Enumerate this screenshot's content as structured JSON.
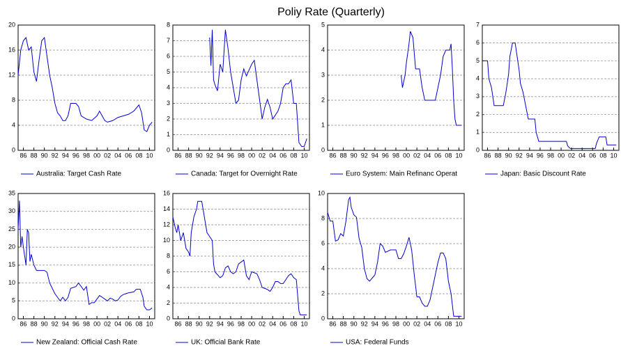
{
  "title": "Poliy Rate (Quarterly)",
  "chart_data": [
    {
      "type": "line",
      "grid": true,
      "xlim": [
        1985,
        2011
      ],
      "ylim": [
        0,
        20
      ],
      "yticks": [
        0,
        4,
        8,
        12,
        16,
        20
      ],
      "xticks": [
        {
          "value": 1986,
          "label": "86"
        },
        {
          "value": 1988,
          "label": "88"
        },
        {
          "value": 1990,
          "label": "90"
        },
        {
          "value": 1992,
          "label": "92"
        },
        {
          "value": 1994,
          "label": "94"
        },
        {
          "value": 1996,
          "label": "96"
        },
        {
          "value": 1998,
          "label": "98"
        },
        {
          "value": 2000,
          "label": "00"
        },
        {
          "value": 2002,
          "label": "02"
        },
        {
          "value": 2004,
          "label": "04"
        },
        {
          "value": 2006,
          "label": "06"
        },
        {
          "value": 2008,
          "label": "08"
        },
        {
          "value": 2010,
          "label": "10"
        }
      ],
      "x": [
        1985,
        1985.5,
        1986,
        1986.5,
        1987,
        1987.5,
        1988,
        1988.5,
        1989,
        1989.5,
        1990,
        1990.5,
        1991,
        1991.5,
        1992,
        1992.5,
        1993,
        1993.5,
        1994,
        1994.5,
        1995,
        1996,
        1996.5,
        1997,
        1998,
        1999,
        2000,
        2000.5,
        2001,
        2001.5,
        2002,
        2003,
        2004,
        2005,
        2006,
        2007,
        2008,
        2008.5,
        2009,
        2009.5,
        2010,
        2010.5
      ],
      "series": [
        {
          "name": "Australia: Target Cash Rate",
          "color": "#0000cc",
          "values": [
            12,
            16,
            17.5,
            18,
            16,
            16.5,
            12.5,
            11,
            14.5,
            17.5,
            18,
            15,
            12,
            10,
            7.5,
            6,
            5.5,
            4.75,
            4.75,
            5.5,
            7.5,
            7.5,
            7,
            5.5,
            5,
            4.75,
            5.5,
            6.25,
            5.5,
            4.75,
            4.5,
            4.75,
            5.25,
            5.5,
            5.75,
            6.25,
            7.25,
            6,
            3.25,
            3,
            4,
            4.5
          ]
        }
      ]
    },
    {
      "type": "line",
      "grid": true,
      "xlim": [
        1985,
        2011
      ],
      "ylim": [
        0,
        8
      ],
      "yticks": [
        0,
        1,
        2,
        3,
        4,
        5,
        6,
        7,
        8
      ],
      "xticks": [
        {
          "value": 1986,
          "label": "86"
        },
        {
          "value": 1988,
          "label": "88"
        },
        {
          "value": 1990,
          "label": "90"
        },
        {
          "value": 1992,
          "label": "92"
        },
        {
          "value": 1994,
          "label": "94"
        },
        {
          "value": 1996,
          "label": "96"
        },
        {
          "value": 1998,
          "label": "98"
        },
        {
          "value": 2000,
          "label": "00"
        },
        {
          "value": 2002,
          "label": "02"
        },
        {
          "value": 2004,
          "label": "04"
        },
        {
          "value": 2006,
          "label": "06"
        },
        {
          "value": 2008,
          "label": "08"
        },
        {
          "value": 2010,
          "label": "10"
        }
      ],
      "x": [
        1992,
        1992.25,
        1992.5,
        1992.75,
        1993,
        1993.5,
        1994,
        1994.5,
        1995,
        1995.5,
        1996,
        1996.5,
        1997,
        1997.5,
        1998,
        1998.5,
        1999,
        2000,
        2000.5,
        2001,
        2002,
        2002.5,
        2003,
        2003.5,
        2004,
        2005,
        2005.5,
        2006,
        2006.5,
        2007,
        2007.5,
        2008,
        2008.5,
        2009,
        2009.5,
        2010,
        2010.5
      ],
      "series": [
        {
          "name": "Canada: Target for Overnight Rate",
          "color": "#0000cc",
          "values": [
            7.2,
            5.4,
            7.7,
            4.5,
            4.2,
            3.8,
            5.5,
            5,
            7.7,
            6.5,
            5,
            4,
            3,
            3.2,
            4.5,
            5.2,
            4.75,
            5.5,
            5.75,
            4.5,
            2,
            2.75,
            3.25,
            2.75,
            2,
            2.5,
            3,
            4,
            4.25,
            4.25,
            4.5,
            3,
            3,
            0.5,
            0.25,
            0.25,
            0.75
          ]
        }
      ]
    },
    {
      "type": "line",
      "grid": true,
      "xlim": [
        1985,
        2011
      ],
      "ylim": [
        0,
        5
      ],
      "yticks": [
        0,
        1,
        2,
        3,
        4,
        5
      ],
      "xticks": [
        {
          "value": 1986,
          "label": "86"
        },
        {
          "value": 1988,
          "label": "88"
        },
        {
          "value": 1990,
          "label": "90"
        },
        {
          "value": 1992,
          "label": "92"
        },
        {
          "value": 1994,
          "label": "94"
        },
        {
          "value": 1996,
          "label": "96"
        },
        {
          "value": 1998,
          "label": "98"
        },
        {
          "value": 2000,
          "label": "00"
        },
        {
          "value": 2002,
          "label": "02"
        },
        {
          "value": 2004,
          "label": "04"
        },
        {
          "value": 2006,
          "label": "06"
        },
        {
          "value": 2008,
          "label": "08"
        },
        {
          "value": 2010,
          "label": "10"
        }
      ],
      "x": [
        1999,
        1999.25,
        1999.75,
        2000,
        2000.5,
        2000.75,
        2001.25,
        2001.75,
        2002.5,
        2003,
        2003.5,
        2005.5,
        2006,
        2006.5,
        2007,
        2007.5,
        2008.25,
        2008.5,
        2008.75,
        2009,
        2009.25,
        2009.5,
        2010.5
      ],
      "series": [
        {
          "name": "Euro System: Main Refinanc Operat",
          "color": "#0000cc",
          "values": [
            3,
            2.5,
            3,
            3.5,
            4.25,
            4.75,
            4.5,
            3.25,
            3.25,
            2.5,
            2,
            2,
            2.5,
            3,
            3.75,
            4,
            4,
            4.25,
            3.25,
            2,
            1.25,
            1,
            1
          ]
        }
      ]
    },
    {
      "type": "line",
      "grid": true,
      "xlim": [
        1985,
        2011
      ],
      "ylim": [
        0,
        7
      ],
      "yticks": [
        0,
        1,
        2,
        3,
        4,
        5,
        6,
        7
      ],
      "xticks": [
        {
          "value": 1986,
          "label": "86"
        },
        {
          "value": 1988,
          "label": "88"
        },
        {
          "value": 1990,
          "label": "90"
        },
        {
          "value": 1992,
          "label": "92"
        },
        {
          "value": 1994,
          "label": "94"
        },
        {
          "value": 1996,
          "label": "96"
        },
        {
          "value": 1998,
          "label": "98"
        },
        {
          "value": 2000,
          "label": "00"
        },
        {
          "value": 2002,
          "label": "02"
        },
        {
          "value": 2004,
          "label": "04"
        },
        {
          "value": 2006,
          "label": "06"
        },
        {
          "value": 2008,
          "label": "08"
        },
        {
          "value": 2010,
          "label": "10"
        }
      ],
      "x": [
        1985,
        1986,
        1986.25,
        1986.75,
        1987,
        1987.25,
        1989,
        1989.5,
        1990,
        1990.25,
        1990.75,
        1991.25,
        1991.5,
        1992,
        1992.25,
        1992.75,
        1993.25,
        1993.75,
        1995,
        1995.25,
        1995.75,
        2001,
        2001.25,
        2001.75,
        2006.5,
        2006.75,
        2007.25,
        2008.5,
        2008.75,
        2010.5
      ],
      "series": [
        {
          "name": "Japan: Basic Discount Rate",
          "color": "#0000cc",
          "values": [
            5,
            5,
            4,
            3.5,
            3,
            2.5,
            2.5,
            3.25,
            4.25,
            5.25,
            6,
            6,
            5.5,
            4.5,
            3.75,
            3.25,
            2.5,
            1.75,
            1.75,
            1,
            0.5,
            0.5,
            0.25,
            0.1,
            0.1,
            0.4,
            0.75,
            0.75,
            0.3,
            0.3
          ]
        }
      ]
    },
    {
      "type": "line",
      "grid": true,
      "xlim": [
        1985,
        2011
      ],
      "ylim": [
        0,
        35
      ],
      "yticks": [
        0,
        5,
        10,
        15,
        20,
        25,
        30,
        35
      ],
      "xticks": [
        {
          "value": 1986,
          "label": "86"
        },
        {
          "value": 1988,
          "label": "88"
        },
        {
          "value": 1990,
          "label": "90"
        },
        {
          "value": 1992,
          "label": "92"
        },
        {
          "value": 1994,
          "label": "94"
        },
        {
          "value": 1996,
          "label": "96"
        },
        {
          "value": 1998,
          "label": "98"
        },
        {
          "value": 2000,
          "label": "00"
        },
        {
          "value": 2002,
          "label": "02"
        },
        {
          "value": 2004,
          "label": "04"
        },
        {
          "value": 2006,
          "label": "06"
        },
        {
          "value": 2008,
          "label": "08"
        },
        {
          "value": 2010,
          "label": "10"
        }
      ],
      "x": [
        1985,
        1985.25,
        1985.5,
        1985.75,
        1986,
        1986.5,
        1986.75,
        1987,
        1987.25,
        1987.5,
        1988,
        1988.5,
        1989,
        1990,
        1990.5,
        1991,
        1992,
        1992.5,
        1993,
        1993.5,
        1994,
        1994.5,
        1995,
        1996,
        1996.5,
        1997,
        1997.5,
        1998,
        1998.5,
        1999,
        1999.5,
        2000,
        2000.5,
        2001,
        2001.5,
        2002,
        2002.5,
        2003,
        2003.5,
        2004,
        2004.5,
        2005,
        2005.5,
        2006,
        2007,
        2007.5,
        2008.25,
        2008.75,
        2009,
        2009.5,
        2010,
        2010.5
      ],
      "series": [
        {
          "name": "New Zealand: Official Cash Rate",
          "color": "#0000cc",
          "values": [
            25,
            33,
            20,
            23,
            20,
            15,
            25,
            24,
            16,
            18,
            15,
            13.5,
            13.5,
            13.5,
            13,
            10,
            7,
            6,
            5,
            6,
            5,
            6,
            8.5,
            9,
            10,
            9,
            8,
            9,
            4,
            4.5,
            4.5,
            5.5,
            6.5,
            6,
            5.5,
            5,
            5.75,
            5.5,
            5,
            5.25,
            6.25,
            6.75,
            7,
            7.25,
            7.5,
            8.25,
            8.25,
            6,
            3.5,
            2.5,
            2.5,
            3
          ]
        }
      ]
    },
    {
      "type": "line",
      "grid": true,
      "xlim": [
        1985,
        2011
      ],
      "ylim": [
        0,
        16
      ],
      "yticks": [
        0,
        2,
        4,
        6,
        8,
        10,
        12,
        14,
        16
      ],
      "xticks": [
        {
          "value": 1986,
          "label": "86"
        },
        {
          "value": 1988,
          "label": "88"
        },
        {
          "value": 1990,
          "label": "90"
        },
        {
          "value": 1992,
          "label": "92"
        },
        {
          "value": 1994,
          "label": "94"
        },
        {
          "value": 1996,
          "label": "96"
        },
        {
          "value": 1998,
          "label": "98"
        },
        {
          "value": 2000,
          "label": "00"
        },
        {
          "value": 2002,
          "label": "02"
        },
        {
          "value": 2004,
          "label": "04"
        },
        {
          "value": 2006,
          "label": "06"
        },
        {
          "value": 2008,
          "label": "08"
        },
        {
          "value": 2010,
          "label": "10"
        }
      ],
      "x": [
        1985,
        1985.5,
        1985.75,
        1986,
        1986.5,
        1987,
        1987.5,
        1988,
        1988.25,
        1988.5,
        1989,
        1989.5,
        1989.75,
        1990.5,
        1990.75,
        1991,
        1991.5,
        1992,
        1992.5,
        1992.75,
        1993,
        1994,
        1994.5,
        1995,
        1995.5,
        1996,
        1996.5,
        1997,
        1997.5,
        1998,
        1998.5,
        1999,
        1999.5,
        2000,
        2001,
        2001.5,
        2002,
        2003,
        2003.5,
        2004,
        2004.5,
        2005,
        2005.5,
        2006,
        2007,
        2007.5,
        2008,
        2008.5,
        2008.75,
        2009,
        2009.25,
        2010.5
      ],
      "series": [
        {
          "name": "UK: Official Bank Rate",
          "color": "#0000cc",
          "values": [
            13,
            11.5,
            11,
            12,
            10,
            11,
            9,
            8.5,
            8,
            11,
            13,
            14,
            15,
            15,
            14,
            13,
            11,
            10.5,
            10,
            7,
            6,
            5.25,
            5.5,
            6.5,
            6.75,
            6,
            5.75,
            6,
            7,
            7.25,
            7.5,
            5.5,
            5,
            6,
            5.75,
            5,
            4,
            3.75,
            3.5,
            4,
            4.75,
            4.75,
            4.5,
            4.5,
            5.5,
            5.75,
            5.25,
            5,
            3,
            1,
            0.5,
            0.5
          ]
        }
      ]
    },
    {
      "type": "line",
      "grid": true,
      "xlim": [
        1985,
        2011
      ],
      "ylim": [
        0,
        10
      ],
      "yticks": [
        0,
        2,
        4,
        6,
        8,
        10
      ],
      "xticks": [
        {
          "value": 1986,
          "label": "86"
        },
        {
          "value": 1988,
          "label": "88"
        },
        {
          "value": 1990,
          "label": "90"
        },
        {
          "value": 1992,
          "label": "92"
        },
        {
          "value": 1994,
          "label": "94"
        },
        {
          "value": 1996,
          "label": "96"
        },
        {
          "value": 1998,
          "label": "98"
        },
        {
          "value": 2000,
          "label": "00"
        },
        {
          "value": 2002,
          "label": "02"
        },
        {
          "value": 2004,
          "label": "04"
        },
        {
          "value": 2006,
          "label": "06"
        },
        {
          "value": 2008,
          "label": "08"
        },
        {
          "value": 2010,
          "label": "10"
        }
      ],
      "x": [
        1985,
        1985.5,
        1986,
        1986.5,
        1987,
        1987.5,
        1988,
        1988.5,
        1989,
        1989.25,
        1989.5,
        1990,
        1990.5,
        1991,
        1991.5,
        1992,
        1992.5,
        1993,
        1994,
        1994.5,
        1995,
        1995.5,
        1996,
        1997,
        1998,
        1998.5,
        1999,
        1999.5,
        2000,
        2000.5,
        2001,
        2001.5,
        2002,
        2002.5,
        2003,
        2003.5,
        2004,
        2004.5,
        2005,
        2005.5,
        2006,
        2006.5,
        2007,
        2007.5,
        2008,
        2008.5,
        2009,
        2010.5
      ],
      "series": [
        {
          "name": "USA: Federal Funds",
          "color": "#0000cc",
          "values": [
            8.5,
            7.8,
            7.8,
            6.2,
            6.3,
            6.8,
            6.6,
            7.8,
            9.5,
            9.7,
            8.9,
            8.3,
            8.1,
            6.4,
            5.7,
            4,
            3.2,
            3,
            3.5,
            4.5,
            6,
            5.8,
            5.3,
            5.5,
            5.5,
            4.8,
            4.8,
            5.2,
            5.8,
            6.5,
            5.5,
            3.5,
            1.75,
            1.75,
            1.25,
            1,
            1,
            1.5,
            2.5,
            3.5,
            4.5,
            5.25,
            5.25,
            4.8,
            3,
            2,
            0.2,
            0.2
          ]
        }
      ]
    }
  ]
}
